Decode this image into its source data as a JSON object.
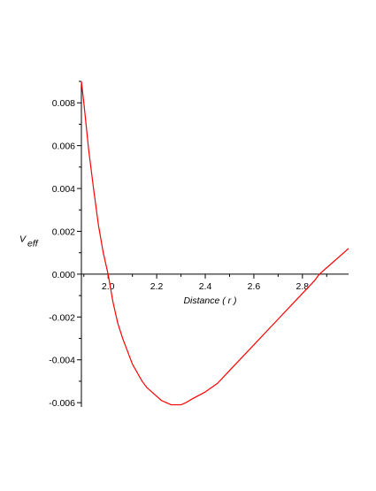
{
  "chart_data": {
    "type": "line",
    "title": "",
    "xlabel": "Distance ( r )",
    "ylabel": {
      "main": "V",
      "sub": "eff"
    },
    "xlim": [
      1.89,
      2.99
    ],
    "ylim": [
      -0.0062,
      0.009
    ],
    "x_ticks": [
      {
        "value": 2.0,
        "label": "2.0"
      },
      {
        "value": 2.2,
        "label": "2.2"
      },
      {
        "value": 2.4,
        "label": "2.4"
      },
      {
        "value": 2.6,
        "label": "2.6"
      },
      {
        "value": 2.8,
        "label": "2.8"
      }
    ],
    "y_ticks": [
      {
        "value": 0.008,
        "label": "0.008"
      },
      {
        "value": 0.006,
        "label": "0.006"
      },
      {
        "value": 0.004,
        "label": "0.004"
      },
      {
        "value": 0.002,
        "label": "0.002"
      },
      {
        "value": 0.0,
        "label": "0.000"
      },
      {
        "value": -0.002,
        "label": "-0.002"
      },
      {
        "value": -0.004,
        "label": "-0.004"
      },
      {
        "value": -0.006,
        "label": "-0.006"
      }
    ],
    "grid": false,
    "legend": "none",
    "series": [
      {
        "color": "#ff0000",
        "x": [
          1.89,
          1.9,
          1.92,
          1.94,
          1.96,
          1.98,
          2.0,
          2.02,
          2.04,
          2.06,
          2.08,
          2.1,
          2.12,
          2.14,
          2.16,
          2.18,
          2.2,
          2.22,
          2.24,
          2.26,
          2.28,
          2.3,
          2.32,
          2.35,
          2.4,
          2.45,
          2.5,
          2.55,
          2.6,
          2.65,
          2.7,
          2.75,
          2.8,
          2.85,
          2.87,
          2.9,
          2.95,
          2.99
        ],
        "y": [
          0.009,
          0.008,
          0.0058,
          0.004,
          0.0023,
          0.001,
          0.0,
          -0.0013,
          -0.0023,
          -0.003,
          -0.0036,
          -0.0042,
          -0.0046,
          -0.005,
          -0.0053,
          -0.0055,
          -0.0057,
          -0.0059,
          -0.006,
          -0.0061,
          -0.0061,
          -0.0061,
          -0.006,
          -0.0058,
          -0.0055,
          -0.0051,
          -0.0045,
          -0.0039,
          -0.0033,
          -0.0027,
          -0.0021,
          -0.0015,
          -0.0009,
          -0.0003,
          0.0,
          0.0003,
          0.0008,
          0.0012
        ]
      }
    ]
  }
}
